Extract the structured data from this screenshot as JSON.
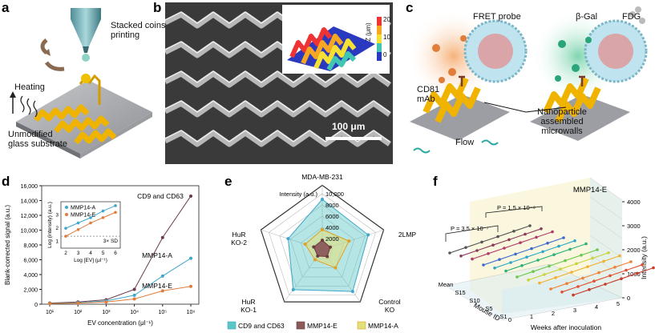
{
  "panels": {
    "a": {
      "letter": "a",
      "nozzle_label": "Stacked coins\nprinting",
      "nozzle_label_line1": "Stacked coins",
      "nozzle_label_line2": "printing",
      "heating_label": "Heating",
      "substrate_label_line1": "Unmodified",
      "substrate_label_line2": "glass substrate"
    },
    "b": {
      "letter": "b",
      "scale_bar": "100 μm",
      "colorbar_ticks": [
        "20",
        "10",
        "0"
      ],
      "colorbar_title": "Z (μm)"
    },
    "c": {
      "letter": "c",
      "fret_label": "FRET probe",
      "bgal_label": "β-Gal",
      "fdg_label": "FDG",
      "cd81_line1": "CD81",
      "cd81_line2": "mAb",
      "flow_label": "Flow",
      "np_line1": "Nanoparticle",
      "np_line2": "assembled",
      "np_line3": "microwalls"
    },
    "d": {
      "letter": "d"
    },
    "e": {
      "letter": "e"
    },
    "f": {
      "letter": "f"
    }
  },
  "colors": {
    "cd9": "#5cc6c4",
    "mmp14e": "#8b5a5a",
    "mmp14a": "#e2e07a",
    "line_dark": "#6b3a4a",
    "line_blue": "#3fa7c9",
    "line_orange": "#e07d3a"
  },
  "chart_data": [
    {
      "type": "line",
      "panel": "d",
      "xlabel": "EV concentration (μl⁻¹)",
      "ylabel": "Blank-corrected signal (a.u.)",
      "x": [
        1,
        2,
        3,
        4,
        5,
        6
      ],
      "x_tick_labels": [
        "10¹",
        "10²",
        "10³",
        "10⁴",
        "10⁵",
        "10⁶"
      ],
      "ylim": [
        0,
        16000
      ],
      "y_ticks": [
        "0",
        "2,000",
        "4,000",
        "6,000",
        "8,000",
        "10,000",
        "12,000",
        "14,000",
        "16,000"
      ],
      "y_tick_values": [
        0,
        2000,
        4000,
        6000,
        8000,
        10000,
        12000,
        14000,
        16000
      ],
      "series": [
        {
          "name": "CD9 and CD63",
          "values": [
            150,
            300,
            600,
            2000,
            9000,
            14600
          ]
        },
        {
          "name": "MMP14-A",
          "values": [
            100,
            200,
            450,
            1200,
            3800,
            6200
          ]
        },
        {
          "name": "MMP14-E",
          "values": [
            80,
            150,
            300,
            700,
            1800,
            2400
          ]
        }
      ],
      "inset": {
        "xlabel": "Log [EV] (μl⁻¹)",
        "ylabel": "Log (intensity) (a.u.)",
        "x_ticks": [
          "2",
          "3",
          "4",
          "5",
          "6"
        ],
        "y_ticks": [
          "1",
          "2",
          "3"
        ],
        "threshold_label": "3× SD",
        "series": [
          {
            "name": "MMP14-A",
            "x": [
              2,
              3,
              4,
              5,
              6
            ],
            "values": [
              2.0,
              2.4,
              2.8,
              3.3,
              3.7
            ]
          },
          {
            "name": "MMP14-E",
            "x": [
              2,
              3,
              4,
              5,
              6
            ],
            "values": [
              1.4,
              1.9,
              2.4,
              2.8,
              3.2
            ]
          }
        ]
      }
    },
    {
      "type": "radar",
      "panel": "e",
      "title": "MDA-MB-231",
      "axis_title": "Intensity (a.u.)",
      "r_ticks": [
        "2000",
        "4000",
        "6000",
        "8000",
        "10,000"
      ],
      "r_tick_values": [
        2000,
        4000,
        6000,
        8000,
        10000
      ],
      "axes": [
        "MDA-MB-231",
        "2LMP",
        "Control KO",
        "HuR KO-1",
        "HuR KO-2"
      ],
      "axis_label_lines": [
        [
          "MDA-MB-231"
        ],
        [
          "2LMP"
        ],
        [
          "Control",
          "KO"
        ],
        [
          "HuR",
          "KO-1"
        ],
        [
          "HuR",
          "KO-2"
        ]
      ],
      "series": [
        {
          "name": "CD9 and CD63",
          "values": [
            9000,
            8600,
            9200,
            8800,
            6400
          ]
        },
        {
          "name": "MMP14-E",
          "values": [
            1700,
            1500,
            1500,
            1400,
            1600
          ]
        },
        {
          "name": "MMP14-A",
          "values": [
            3600,
            5000,
            4000,
            2200,
            3200
          ]
        }
      ]
    },
    {
      "type": "line",
      "panel": "f",
      "title": "MMP14-E",
      "xlabel": "Weeks after inoculation",
      "ylabel": "Intensity (a.u.)",
      "zlabel": "Mouse ID",
      "x_ticks": [
        "0",
        "1",
        "2",
        "3",
        "4",
        "5"
      ],
      "z_ticks": [
        "Mean",
        "S15",
        "S10",
        "S5",
        "S1"
      ],
      "y_ticks": [
        "0",
        "1000",
        "2000",
        "3000",
        "4000"
      ],
      "ylim": [
        0,
        4000
      ],
      "annotations": [
        "P = 3.5 × 10⁻⁷",
        "P = 1.5 × 10⁻⁸"
      ]
    }
  ]
}
